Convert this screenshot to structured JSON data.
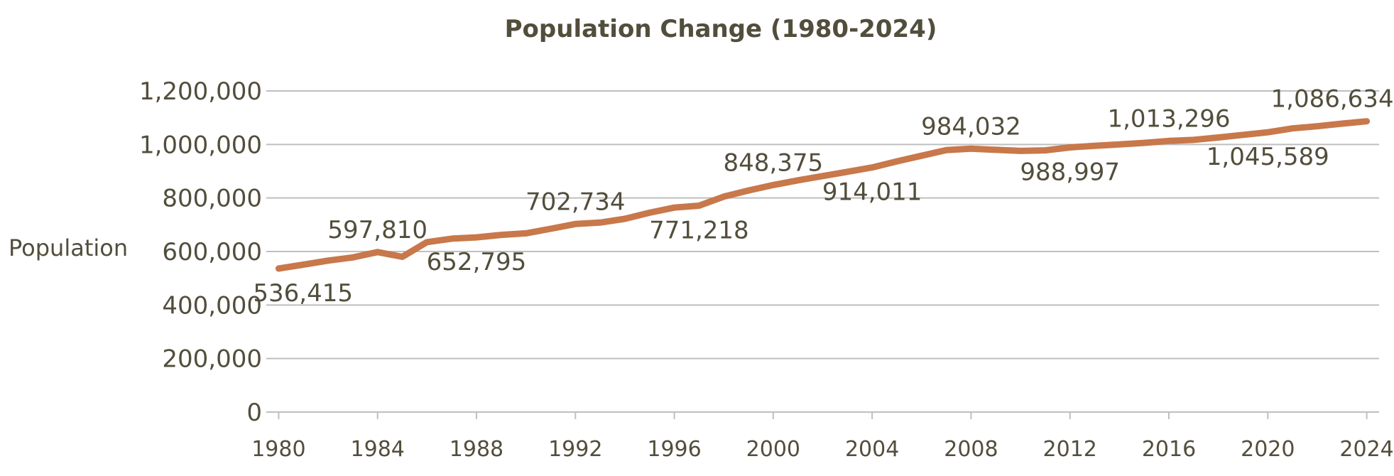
{
  "chart_data": {
    "type": "line",
    "title": "Population Change (1980-2024)",
    "xlabel": "",
    "ylabel": "Population",
    "xlim": [
      1980,
      2024
    ],
    "ylim": [
      0,
      1200000
    ],
    "yticks": [
      0,
      200000,
      400000,
      600000,
      800000,
      1000000,
      1200000
    ],
    "ytick_labels": [
      "0",
      "200,000",
      "400,000",
      "600,000",
      "800,000",
      "1,000,000",
      "1,200,000"
    ],
    "xticks": [
      1980,
      1984,
      1988,
      1992,
      1996,
      2000,
      2004,
      2008,
      2012,
      2016,
      2020,
      2024
    ],
    "xtick_labels": [
      "1980",
      "1984",
      "1988",
      "1992",
      "1996",
      "2000",
      "2004",
      "2008",
      "2012",
      "2016",
      "2020",
      "2024"
    ],
    "grid": true,
    "legend": "none",
    "colors": {
      "line": "#c8784a",
      "text": "#524e3c",
      "grid": "#bfbfbf",
      "axis": "#bfbfbf"
    },
    "series": [
      {
        "name": "Population",
        "x": [
          1980,
          1981,
          1982,
          1983,
          1984,
          1985,
          1986,
          1987,
          1988,
          1989,
          1990,
          1991,
          1992,
          1993,
          1994,
          1995,
          1996,
          1997,
          1998,
          1999,
          2000,
          2001,
          2002,
          2003,
          2004,
          2005,
          2006,
          2007,
          2008,
          2009,
          2010,
          2011,
          2012,
          2013,
          2014,
          2015,
          2016,
          2017,
          2018,
          2019,
          2020,
          2021,
          2022,
          2023,
          2024
        ],
        "values": [
          536415,
          551000,
          566000,
          578000,
          597810,
          580000,
          635000,
          648000,
          652795,
          662000,
          668000,
          685000,
          702734,
          708000,
          722000,
          745000,
          764000,
          771218,
          805000,
          828000,
          848375,
          866000,
          882000,
          898000,
          914011,
          937000,
          958000,
          979000,
          984032,
          980000,
          976000,
          978000,
          988997,
          995000,
          1000000,
          1006000,
          1013296,
          1017000,
          1026000,
          1036000,
          1045589,
          1060000,
          1068000,
          1078000,
          1086634
        ]
      }
    ],
    "annotations": [
      {
        "label": "536,415",
        "x": 1980,
        "value": 536415,
        "position": "below"
      },
      {
        "label": "597,810",
        "x": 1984,
        "value": 597810,
        "position": "above"
      },
      {
        "label": "652,795",
        "x": 1988,
        "value": 652795,
        "position": "below"
      },
      {
        "label": "702,734",
        "x": 1992,
        "value": 702734,
        "position": "above"
      },
      {
        "label": "771,218",
        "x": 1997,
        "value": 771218,
        "position": "below"
      },
      {
        "label": "848,375",
        "x": 2000,
        "value": 848375,
        "position": "above"
      },
      {
        "label": "914,011",
        "x": 2004,
        "value": 914011,
        "position": "below"
      },
      {
        "label": "984,032",
        "x": 2008,
        "value": 984032,
        "position": "above"
      },
      {
        "label": "988,997",
        "x": 2012,
        "value": 988997,
        "position": "below"
      },
      {
        "label": "1,013,296",
        "x": 2016,
        "value": 1013296,
        "position": "above"
      },
      {
        "label": "1,045,589",
        "x": 2020,
        "value": 1045589,
        "position": "below"
      },
      {
        "label": "1,086,634",
        "x": 2024,
        "value": 1086634,
        "position": "above"
      }
    ]
  }
}
